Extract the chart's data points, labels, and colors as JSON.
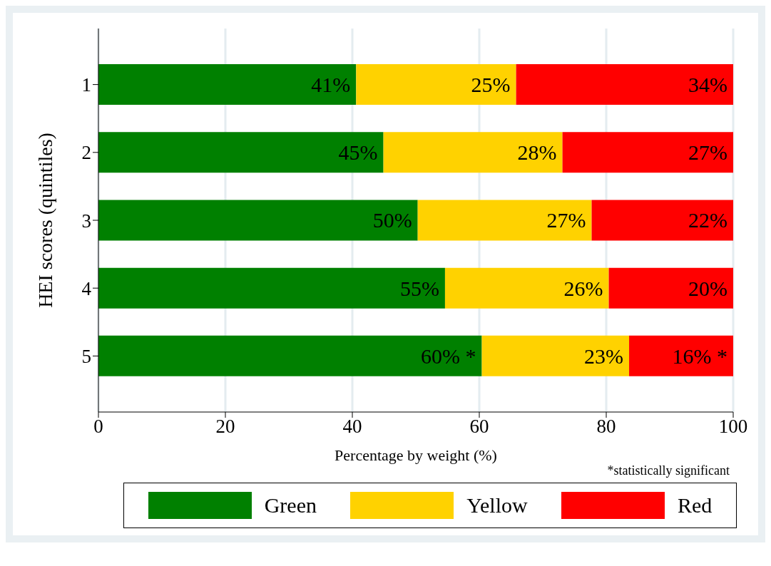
{
  "chart_data": {
    "type": "bar",
    "orientation": "horizontal",
    "stacked": true,
    "xlabel": "Percentage by weight (%)",
    "ylabel": "HEI scores (quintiles)",
    "categories": [
      "1",
      "2",
      "3",
      "4",
      "5"
    ],
    "series": [
      {
        "name": "Green",
        "color": "#008000",
        "values": [
          40.6,
          44.9,
          50.3,
          54.6,
          60.4
        ],
        "value_labels": [
          "41%",
          "45%",
          "50%",
          "55%",
          "60% *"
        ]
      },
      {
        "name": "Yellow",
        "color": "#ffd200",
        "values": [
          25.2,
          28.2,
          27.4,
          25.8,
          23.2
        ],
        "value_labels": [
          "25%",
          "28%",
          "27%",
          "26%",
          "23%"
        ]
      },
      {
        "name": "Red",
        "color": "#ff0000",
        "values": [
          34.2,
          26.9,
          22.3,
          19.6,
          16.4
        ],
        "value_labels": [
          "34%",
          "27%",
          "22%",
          "20%",
          "16% *"
        ]
      }
    ],
    "xlim": [
      0,
      100
    ],
    "xticks": [
      0,
      20,
      40,
      60,
      80,
      100
    ],
    "grid": "x",
    "legend": "bottom",
    "annotations": [
      "*statistically significant"
    ]
  }
}
